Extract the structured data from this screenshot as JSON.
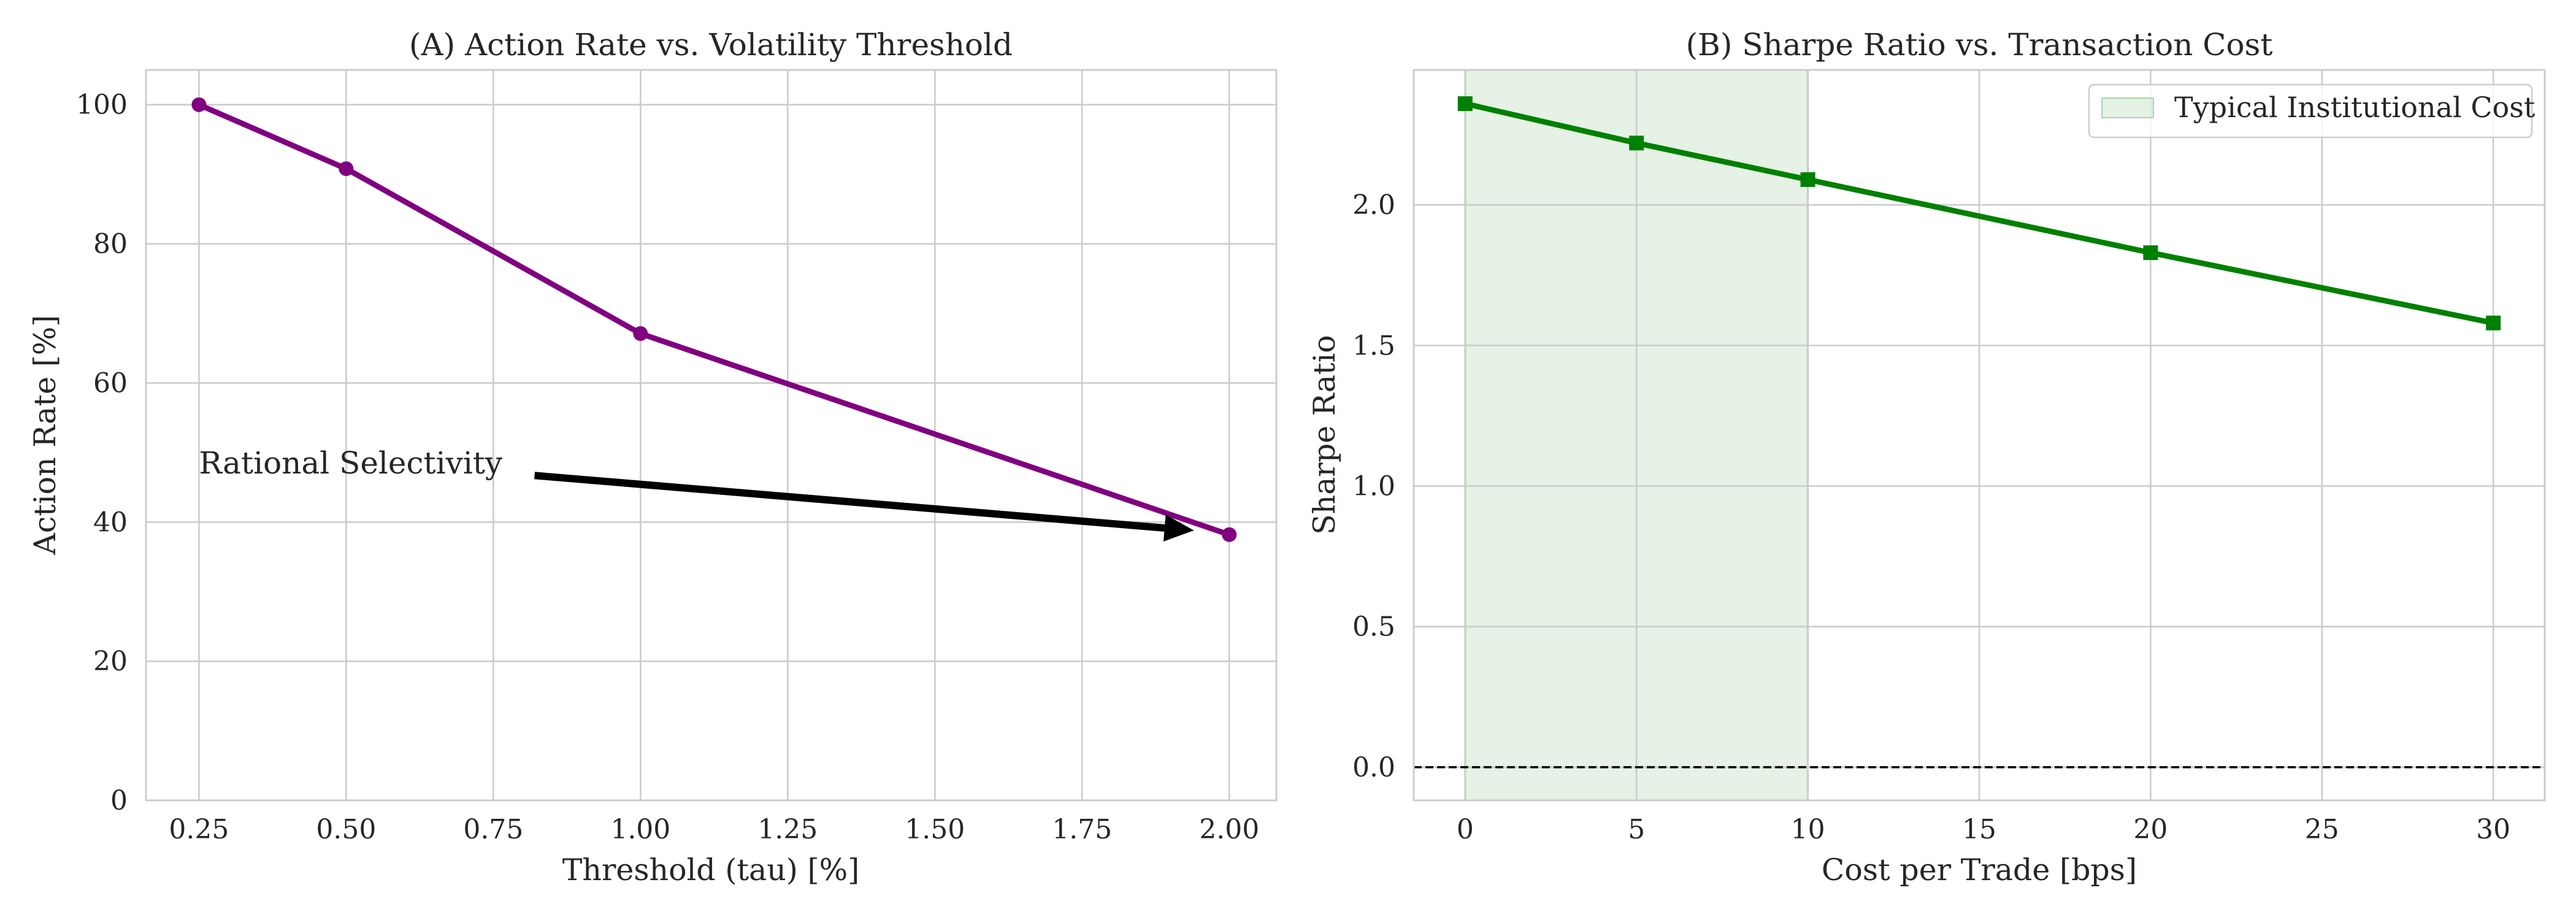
{
  "chart_data": [
    {
      "type": "line",
      "title": "(A) Action Rate vs. Volatility Threshold",
      "xlabel": "Threshold (tau) [%]",
      "ylabel": "Action Rate [%]",
      "xlim": [
        0.16,
        2.08
      ],
      "ylim": [
        0,
        105
      ],
      "xticks": [
        0.25,
        0.5,
        0.75,
        1.0,
        1.25,
        1.5,
        1.75,
        2.0
      ],
      "xtick_labels": [
        "0.25",
        "0.50",
        "0.75",
        "1.00",
        "1.25",
        "1.50",
        "1.75",
        "2.00"
      ],
      "yticks": [
        0,
        20,
        40,
        60,
        80,
        100
      ],
      "ytick_labels": [
        "0",
        "20",
        "40",
        "60",
        "80",
        "100"
      ],
      "grid": true,
      "series": [
        {
          "x": [
            0.25,
            0.5,
            1.0,
            2.0
          ],
          "y": [
            100,
            90.8,
            67.1,
            38.2
          ],
          "color": "#800080",
          "marker": "circle"
        }
      ],
      "annotation": {
        "text": "Rational Selectivity",
        "text_pos": [
          0.25,
          47
        ],
        "arrow_from": [
          0.82,
          46.7
        ],
        "arrow_to": [
          1.94,
          38.8
        ]
      }
    },
    {
      "type": "line",
      "title": "(B) Sharpe Ratio vs. Transaction Cost",
      "xlabel": "Cost per Trade [bps]",
      "ylabel": "Sharpe Ratio",
      "xlim": [
        -1.5,
        31.5
      ],
      "ylim": [
        -0.118,
        2.48
      ],
      "xticks": [
        0,
        5,
        10,
        15,
        20,
        25,
        30
      ],
      "xtick_labels": [
        "0",
        "5",
        "10",
        "15",
        "20",
        "25",
        "30"
      ],
      "yticks": [
        0.0,
        0.5,
        1.0,
        1.5,
        2.0
      ],
      "ytick_labels": [
        "0.0",
        "0.5",
        "1.0",
        "1.5",
        "2.0"
      ],
      "grid": true,
      "series": [
        {
          "x": [
            0,
            5,
            10,
            20,
            30
          ],
          "y": [
            2.36,
            2.22,
            2.09,
            1.83,
            1.58
          ],
          "color": "#008000",
          "marker": "square"
        }
      ],
      "shaded_region": {
        "x": [
          0,
          10
        ],
        "label": "Typical Institutional Cost",
        "color": "#008000"
      },
      "reference_line": {
        "y": 0,
        "style": "dashed",
        "color": "#000000"
      },
      "legend": "top-right"
    }
  ]
}
